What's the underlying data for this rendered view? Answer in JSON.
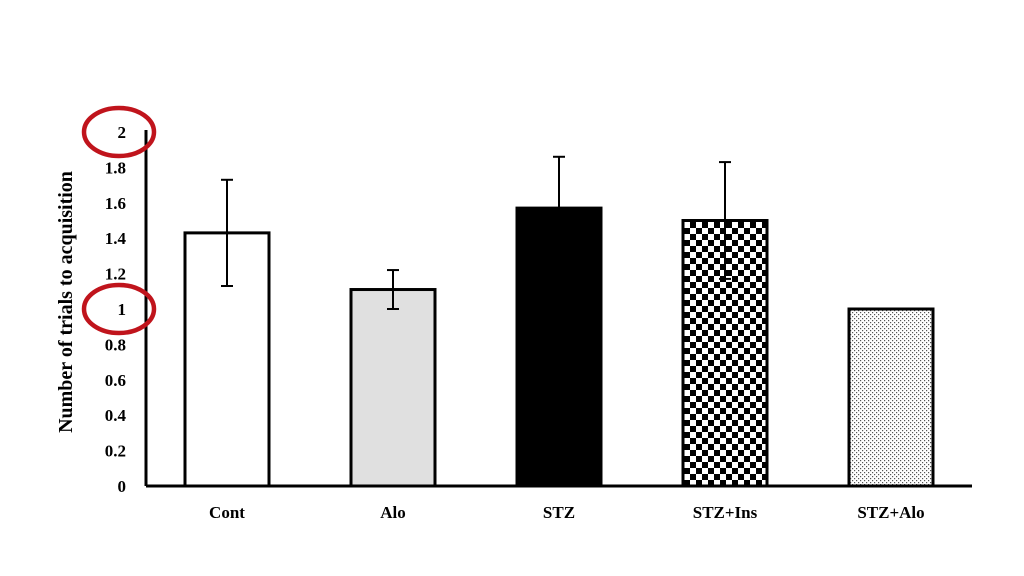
{
  "chart_data": {
    "type": "bar",
    "title": "",
    "xlabel": "",
    "ylabel": "Number of trials to acquisition",
    "ylim": [
      0,
      2
    ],
    "yticks": [
      0,
      0.2,
      0.4,
      0.6,
      0.8,
      1,
      1.2,
      1.4,
      1.6,
      1.8,
      2
    ],
    "ytick_labels": [
      "0",
      "0.2",
      "0.4",
      "0.6",
      "0.8",
      "1",
      "1.2",
      "1.4",
      "1.6",
      "1.8",
      "2"
    ],
    "grid": false,
    "categories": [
      "Cont",
      "Alo",
      "STZ",
      "STZ+Ins",
      "STZ+Alo"
    ],
    "values": [
      1.43,
      1.11,
      1.57,
      1.5,
      1.0
    ],
    "error_upper": [
      1.73,
      1.22,
      1.86,
      1.83,
      null
    ],
    "error_lower": [
      1.13,
      1.0,
      1.57,
      1.17,
      null
    ],
    "bar_fills": [
      "white",
      "light-gray",
      "black",
      "checkerboard",
      "dotted"
    ],
    "colors": {
      "axis": "#000000",
      "light_gray": "#e0e0e0",
      "highlight_circle": "#c0141c"
    },
    "annotations": [
      {
        "shape": "circle",
        "target_tick": "2",
        "color": "#c0141c"
      },
      {
        "shape": "circle",
        "target_tick": "1",
        "color": "#c0141c"
      }
    ]
  }
}
